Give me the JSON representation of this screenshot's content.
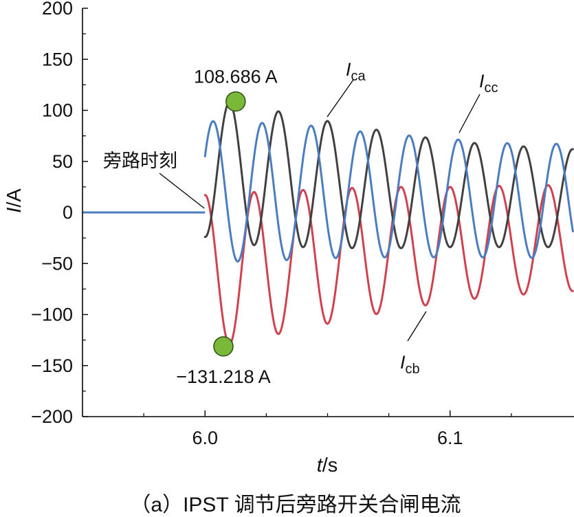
{
  "chart_data": {
    "type": "line",
    "xlabel": {
      "italic": "t",
      "unit": "/s"
    },
    "ylabel": {
      "italic": "I",
      "unit": "/A"
    },
    "xlim": [
      5.95,
      6.15
    ],
    "ylim": [
      -200,
      200
    ],
    "x_ticks": [
      6.0,
      6.1
    ],
    "x_tick_labels": [
      "6.0",
      "6.1"
    ],
    "y_ticks": [
      200,
      150,
      100,
      50,
      0,
      -50,
      -100,
      -150,
      -200
    ],
    "y_tick_labels": [
      "200",
      "150",
      "100",
      "50",
      "0",
      "−50",
      "−100",
      "−150",
      "−200"
    ],
    "switch_time": 6.0,
    "frequency_hz": 50,
    "series": [
      {
        "name": "ca",
        "label_main": "I",
        "label_sub": "ca",
        "color": "#404040",
        "envelope_t": [
          6.0,
          6.01,
          6.02,
          6.04,
          6.06,
          6.08,
          6.1,
          6.12,
          6.15
        ],
        "envelope_amp": [
          66,
          68,
          68,
          64,
          60,
          56,
          52,
          50,
          48
        ],
        "envelope_offset": [
          42,
          40,
          36,
          30,
          25,
          21,
          18,
          16,
          14
        ],
        "phase_deg": 270
      },
      {
        "name": "cb",
        "label_main": "I",
        "label_sub": "cb",
        "color": "#d0404e",
        "envelope_t": [
          6.0,
          6.01,
          6.02,
          6.04,
          6.06,
          6.08,
          6.1,
          6.12,
          6.15
        ],
        "envelope_amp": [
          74,
          74,
          72,
          68,
          64,
          60,
          56,
          54,
          52
        ],
        "envelope_offset": [
          -57,
          -55,
          -52,
          -46,
          -40,
          -35,
          -31,
          -28,
          -25
        ],
        "phase_deg": 90
      },
      {
        "name": "cc",
        "label_main": "I",
        "label_sub": "cc",
        "color": "#4a7cc0",
        "envelope_t": [
          6.0,
          6.01,
          6.02,
          6.04,
          6.06,
          6.08,
          6.1,
          6.12,
          6.15
        ],
        "envelope_amp": [
          70,
          68,
          68,
          66,
          62,
          60,
          58,
          56,
          56
        ],
        "envelope_offset": [
          20,
          20,
          20,
          20,
          18,
          16,
          14,
          12,
          11
        ],
        "phase_deg": 30
      }
    ],
    "points": [
      {
        "label": "108.686 A",
        "x": 6.0125,
        "y": 108.686,
        "color": "#7ab83a"
      },
      {
        "label": "−131.218 A",
        "x": 6.0075,
        "y": -131.218,
        "color": "#7ab83a"
      }
    ],
    "annotations": [
      {
        "text": "旁路时刻",
        "target_x": 6.0,
        "target_y": 0
      }
    ]
  },
  "caption": "（a）IPST 调节后旁路开关合闸电流"
}
